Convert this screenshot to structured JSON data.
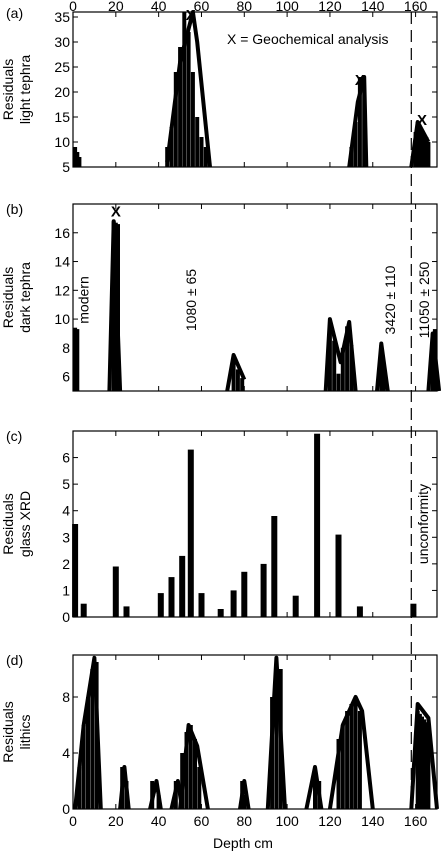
{
  "figure": {
    "xlabel": "Depth cm",
    "xticks": [
      0,
      20,
      40,
      60,
      80,
      100,
      120,
      140,
      160
    ],
    "xlim": [
      0,
      170
    ],
    "unconformity_depth": 158
  },
  "chart_data": [
    {
      "panel": "(a)",
      "type": "bar",
      "ylabel": [
        "Residuals",
        "light tephra"
      ],
      "ylim": [
        5,
        36
      ],
      "yticks": [
        5,
        10,
        15,
        20,
        25,
        30,
        35
      ],
      "legend_text": "X = Geochemical analysis",
      "markers": [
        {
          "x": 55,
          "y": 34,
          "label": "X"
        },
        {
          "x": 134,
          "y": 21,
          "label": "X"
        },
        {
          "x": 163,
          "y": 13,
          "label": "X"
        }
      ],
      "x": [
        1,
        2,
        3,
        44,
        46,
        48,
        50,
        52,
        54,
        56,
        58,
        60,
        62,
        130,
        132,
        134,
        136,
        160,
        161,
        162,
        163,
        164,
        165,
        166
      ],
      "values": [
        9,
        8,
        7,
        9,
        13,
        24,
        29,
        36,
        32,
        24,
        15,
        11,
        9,
        9,
        14,
        23,
        20,
        12,
        14,
        13,
        12,
        11,
        11,
        10
      ],
      "envelopes": [
        [
          [
            44,
            6
          ],
          [
            50,
            26
          ],
          [
            56,
            36
          ],
          [
            58,
            30
          ],
          [
            64,
            5
          ]
        ],
        [
          [
            129,
            5
          ],
          [
            133,
            18
          ],
          [
            136,
            23
          ],
          [
            137,
            5
          ]
        ],
        [
          [
            158,
            5
          ],
          [
            161,
            14
          ],
          [
            166,
            10
          ]
        ]
      ]
    },
    {
      "panel": "(b)",
      "type": "bar",
      "ylabel": [
        "Residuals",
        "dark tephra"
      ],
      "ylim": [
        5,
        18
      ],
      "yticks": [
        6,
        8,
        10,
        12,
        14,
        16
      ],
      "markers": [
        {
          "x": 20,
          "y": 17,
          "label": "X"
        }
      ],
      "annotations": [
        {
          "x": 5,
          "text": "modern"
        },
        {
          "x": 55,
          "text": "1080 ± 65"
        },
        {
          "x": 148,
          "text": "3420 ± 110"
        },
        {
          "x": 164,
          "text": "11050 ± 250"
        }
      ],
      "x": [
        1,
        2,
        19,
        20,
        21,
        75,
        77,
        79,
        120,
        122,
        124,
        126,
        128,
        130,
        144,
        145,
        168,
        169
      ],
      "values": [
        9.4,
        9.3,
        16.8,
        16.7,
        16.6,
        7.3,
        6.5,
        5.9,
        9.5,
        8.5,
        6.2,
        8.0,
        9.5,
        8.2,
        8.2,
        6.7,
        9.0,
        9.3
      ],
      "envelopes": [
        [
          [
            17,
            5
          ],
          [
            19,
            16.8
          ],
          [
            22,
            5
          ]
        ],
        [
          [
            72,
            5
          ],
          [
            75,
            7.5
          ],
          [
            80,
            5.8
          ]
        ],
        [
          [
            118,
            5
          ],
          [
            120,
            10
          ],
          [
            125,
            7
          ],
          [
            129,
            9.8
          ],
          [
            132,
            5
          ]
        ],
        [
          [
            142,
            5
          ],
          [
            144,
            8.3
          ],
          [
            147,
            5
          ]
        ],
        [
          [
            166,
            5
          ],
          [
            168,
            9
          ],
          [
            171,
            5
          ]
        ]
      ]
    },
    {
      "panel": "(c)",
      "type": "bar",
      "ylabel": [
        "Residuals",
        "glass XRD"
      ],
      "ylim": [
        0,
        7
      ],
      "yticks": [
        0,
        1,
        2,
        3,
        4,
        5,
        6
      ],
      "side_label": "unconformity",
      "x": [
        1,
        5,
        20,
        25,
        41,
        46,
        51,
        55,
        60,
        69,
        75,
        80,
        89,
        94,
        104,
        114,
        124,
        134,
        159
      ],
      "values": [
        3.5,
        0.5,
        1.9,
        0.4,
        0.9,
        1.5,
        2.3,
        6.3,
        0.9,
        0.3,
        1.0,
        1.7,
        2.0,
        3.8,
        0.8,
        6.9,
        3.1,
        0.4,
        0.5
      ]
    },
    {
      "panel": "(d)",
      "type": "bar",
      "ylabel": [
        "Residuals",
        "lithics"
      ],
      "ylim": [
        0,
        11
      ],
      "yticks": [
        0,
        4,
        8
      ],
      "x": [
        3,
        5,
        7,
        9,
        11,
        23,
        25,
        37,
        40,
        48,
        51,
        53,
        55,
        57,
        59,
        79,
        80,
        93,
        95,
        97,
        113,
        115,
        124,
        126,
        128,
        130,
        132,
        134,
        161,
        162,
        163,
        164,
        165,
        166
      ],
      "values": [
        3,
        6,
        8,
        10,
        10.5,
        3,
        2,
        2,
        1,
        2,
        4,
        5.5,
        6,
        5,
        3,
        2,
        1,
        8,
        10.3,
        10,
        2.5,
        2,
        5,
        6,
        7,
        7.5,
        8,
        7,
        7,
        6.8,
        6.6,
        6.4,
        6.2,
        6
      ],
      "envelopes": [
        [
          [
            1,
            0
          ],
          [
            5,
            6
          ],
          [
            10,
            10.8
          ],
          [
            13,
            0
          ]
        ],
        [
          [
            22,
            0
          ],
          [
            24,
            3
          ],
          [
            26,
            0
          ]
        ],
        [
          [
            36,
            0
          ],
          [
            39,
            2
          ],
          [
            41,
            0
          ]
        ],
        [
          [
            46,
            0
          ],
          [
            49,
            2
          ],
          [
            51,
            0
          ]
        ],
        [
          [
            50,
            0
          ],
          [
            54,
            6
          ],
          [
            58,
            4.5
          ],
          [
            63,
            0
          ]
        ],
        [
          [
            78,
            0
          ],
          [
            80,
            2
          ],
          [
            82,
            0
          ]
        ],
        [
          [
            91,
            0
          ],
          [
            95,
            10.8
          ],
          [
            99,
            0
          ]
        ],
        [
          [
            109,
            0
          ],
          [
            113,
            3
          ],
          [
            116,
            0
          ]
        ],
        [
          [
            120,
            0
          ],
          [
            126,
            6
          ],
          [
            132,
            8
          ],
          [
            135,
            7
          ],
          [
            140,
            0
          ]
        ],
        [
          [
            158,
            0
          ],
          [
            161,
            7.5
          ],
          [
            166,
            6.5
          ],
          [
            170,
            0
          ]
        ]
      ]
    }
  ]
}
